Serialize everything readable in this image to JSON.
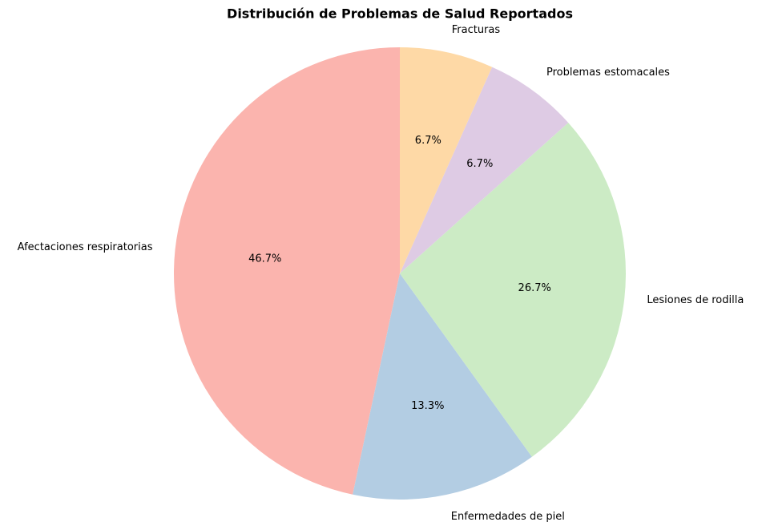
{
  "chart_data": {
    "type": "pie",
    "title": "Distribución de Problemas de Salud Reportados",
    "categories": [
      "Afectaciones respiratorias",
      "Enfermedades de piel",
      "Lesiones de rodilla",
      "Problemas estomacales",
      "Fracturas"
    ],
    "values": [
      46.7,
      13.3,
      26.7,
      6.7,
      6.7
    ],
    "value_labels": [
      "46.7%",
      "13.3%",
      "26.7%",
      "6.7%",
      "6.7%"
    ],
    "colors": [
      "#fbb4ae",
      "#b3cde3",
      "#ccebc5",
      "#decbe4",
      "#fed9a6"
    ]
  }
}
